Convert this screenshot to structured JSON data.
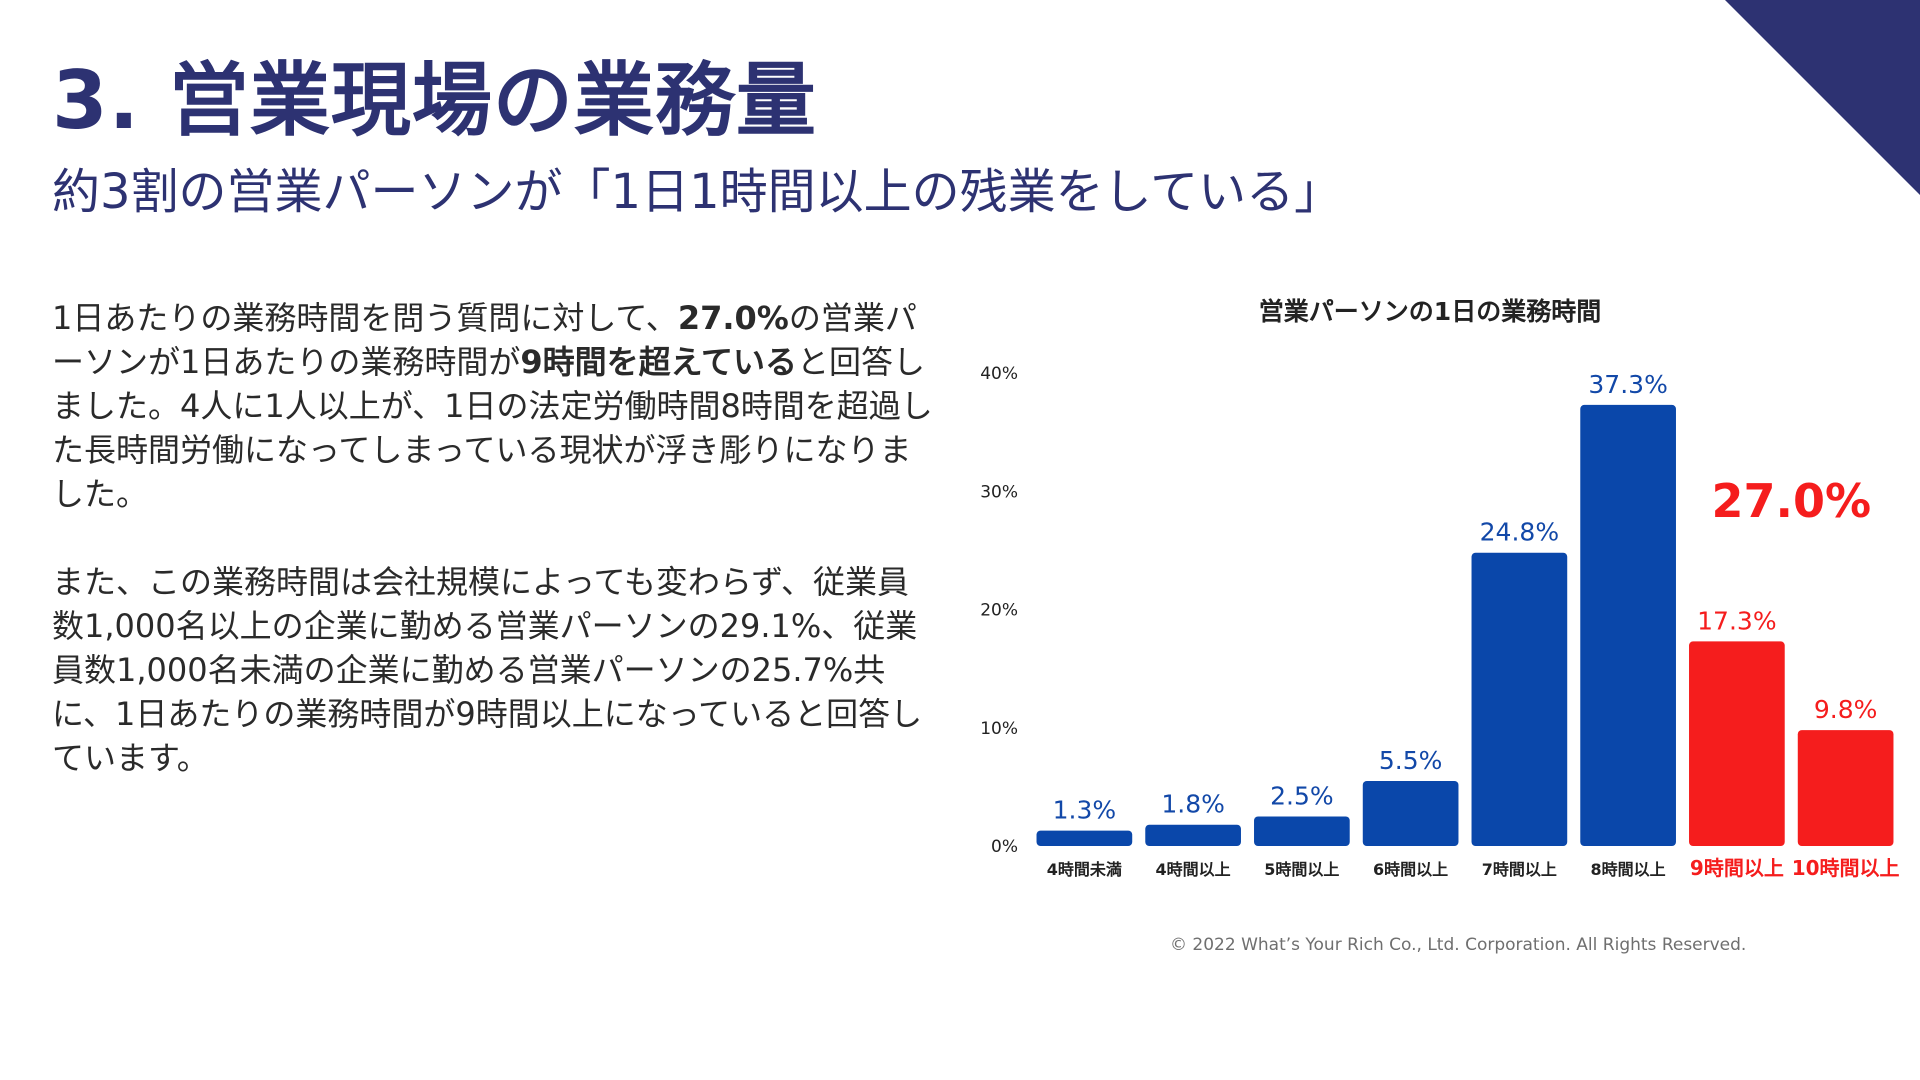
{
  "slide": {
    "title": "3. 営業現場の業務量",
    "subtitle": "約3割の営業パーソンが「1日1時間以上の残業をしている」",
    "paragraph1": [
      [
        {
          "t": "1日あたりの業務時間を問う質問に対して、"
        },
        {
          "t": "27.0%",
          "b": true
        },
        {
          "t": "の営業パ"
        }
      ],
      [
        {
          "t": "ーソンが1日あたりの業務時間が"
        },
        {
          "t": "9時間を超えている",
          "b": true
        },
        {
          "t": "と回答し"
        }
      ],
      [
        {
          "t": "ました。4人に1人以上が、1日の法定労働時間8時間を超過し"
        }
      ],
      [
        {
          "t": "た長時間労働になってしまっている現状が浮き彫りになりま"
        }
      ],
      [
        {
          "t": "した。"
        }
      ]
    ],
    "paragraph2": [
      [
        {
          "t": "また、この業務時間は会社規模によっても変わらず、従業員"
        }
      ],
      [
        {
          "t": "数1,000名以上の企業に勤める営業パーソンの29.1%、従業"
        }
      ],
      [
        {
          "t": "員数1,000名未満の企業に勤める営業パーソンの25.7%共"
        }
      ],
      [
        {
          "t": "に、1日あたりの業務時間が9時間以上になっていると回答し"
        }
      ],
      [
        {
          "t": "ています。"
        }
      ]
    ],
    "copyright": "© 2022 What’s Your Rich Co., Ltd. Corporation. All Rights Reserved."
  },
  "colors": {
    "title": "#2d3272",
    "corner": "#2d3272",
    "bar_blue": "#0a47aa",
    "bar_red": "#f51d1d",
    "label_blue": "#1248a8",
    "label_red": "#f51d1d"
  },
  "chart_data": {
    "type": "bar",
    "title": "営業パーソンの1日の業務時間",
    "categories": [
      "4時間未満",
      "4時間以上",
      "5時間以上",
      "6時間以上",
      "7時間以上",
      "8時間以上",
      "9時間以上",
      "10時間以上"
    ],
    "values": [
      1.3,
      1.8,
      2.5,
      5.5,
      24.8,
      37.3,
      17.3,
      9.8
    ],
    "value_labels": [
      "1.3%",
      "1.8%",
      "2.5%",
      "5.5%",
      "24.8%",
      "37.3%",
      "17.3%",
      "9.8%"
    ],
    "highlight": [
      false,
      false,
      false,
      false,
      false,
      false,
      true,
      true
    ],
    "yticks": [
      0,
      10,
      20,
      30,
      40
    ],
    "ytick_labels": [
      "0%",
      "10%",
      "20%",
      "30%",
      "40%"
    ],
    "ylim": [
      0,
      40
    ],
    "grid": false,
    "annotation": "27.0%",
    "xlabel": "",
    "ylabel": ""
  }
}
